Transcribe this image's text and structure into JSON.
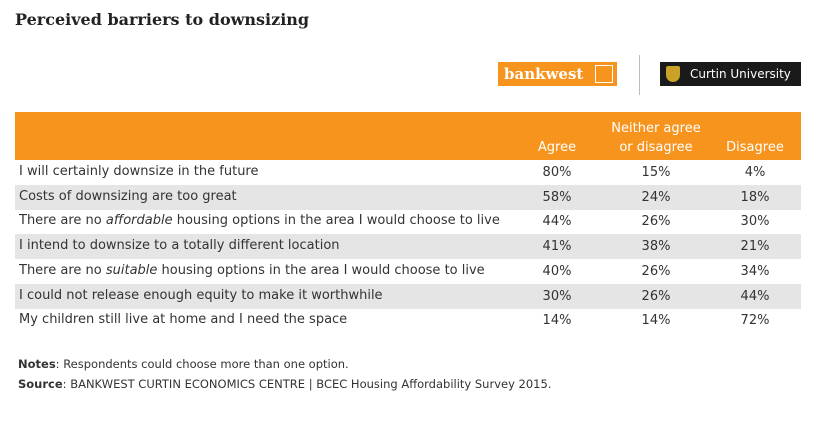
{
  "header": {
    "title": "Perceived barriers to downsizing"
  },
  "logos": {
    "bankwest": "bankwest",
    "curtin": "Curtin University"
  },
  "table": {
    "columns": [
      "Agree",
      "Neither agree or disagree",
      "Disagree"
    ],
    "rows": [
      {
        "label": [
          "I will certainly downsize in the future"
        ],
        "cells": [
          "80%",
          "15%",
          "4%"
        ]
      },
      {
        "label": [
          "Costs of downsizing are too great"
        ],
        "cells": [
          "58%",
          "24%",
          "18%"
        ]
      },
      {
        "label": [
          "There are no ",
          "affordable",
          " housing options in the area I would choose to live"
        ],
        "cells": [
          "44%",
          "26%",
          "30%"
        ]
      },
      {
        "label": [
          "I intend to downsize to a totally different location"
        ],
        "cells": [
          "41%",
          "38%",
          "21%"
        ]
      },
      {
        "label": [
          "There are no ",
          "suitable",
          " housing options in the area I would choose to live"
        ],
        "cells": [
          "40%",
          "26%",
          "34%"
        ]
      },
      {
        "label": [
          "I could not release enough equity to make it worthwhile"
        ],
        "cells": [
          "30%",
          "26%",
          "44%"
        ]
      },
      {
        "label": [
          "My children still live at home and I need the space"
        ],
        "cells": [
          "14%",
          "14%",
          "72%"
        ]
      }
    ]
  },
  "notes": {
    "label": "Notes",
    "text": ": Respondents could choose more than one option."
  },
  "source": {
    "label": "Source",
    "text": ": BANKWEST CURTIN ECONOMICS CENTRE | BCEC Housing Affordability Survey 2015."
  }
}
